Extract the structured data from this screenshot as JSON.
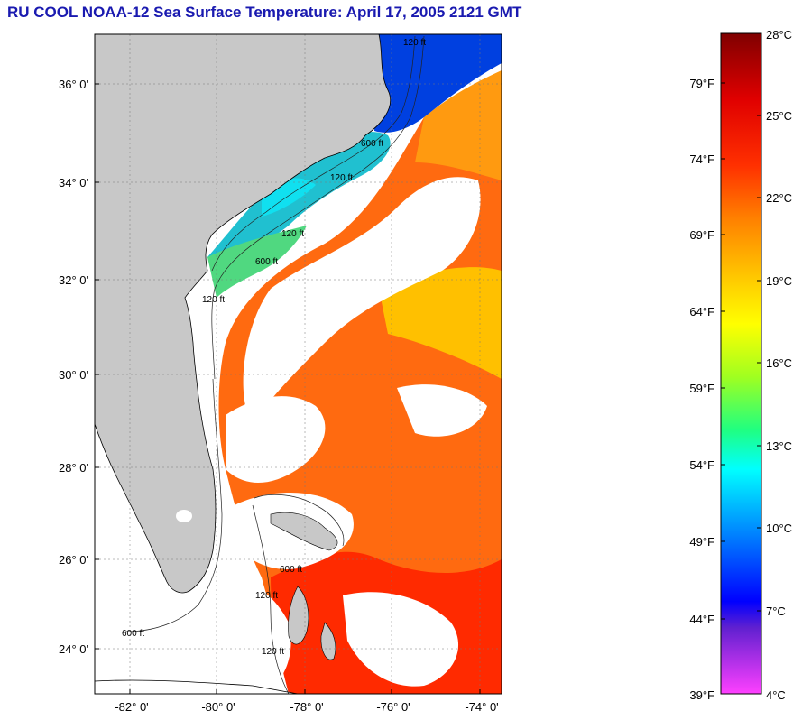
{
  "title": "RU COOL  NOAA-12  Sea Surface Temperature:  April 17, 2005 2121 GMT",
  "map": {
    "lat_labels": [
      "36° 0'",
      "34° 0'",
      "32° 0'",
      "30° 0'",
      "28° 0'",
      "26° 0'",
      "24° 0'"
    ],
    "lon_labels": [
      "-82° 0'",
      "-80° 0'",
      "-78° 0'",
      "-76° 0'",
      "-74° 0'"
    ],
    "contour_labels": [
      "600 ft",
      "120 ft",
      "600 ft",
      "120 ft",
      "120 ft",
      "600 ft",
      "120 ft",
      "600 ft",
      "120 ft"
    ],
    "colors": {
      "land": "#c8c8c8",
      "cloud": "#ffffff",
      "coast": "#000000"
    }
  },
  "colorbar": {
    "fahrenheit": [
      "79°F",
      "74°F",
      "69°F",
      "64°F",
      "59°F",
      "54°F",
      "49°F",
      "44°F",
      "39°F"
    ],
    "celsius": [
      "28°C",
      "25°C",
      "22°C",
      "19°C",
      "16°C",
      "13°C",
      "10°C",
      "7°C",
      "4°C"
    ],
    "gradient_stops": [
      {
        "offset": "0%",
        "color": "#800000"
      },
      {
        "offset": "10%",
        "color": "#e00000"
      },
      {
        "offset": "20%",
        "color": "#ff3000"
      },
      {
        "offset": "28%",
        "color": "#ff8000"
      },
      {
        "offset": "38%",
        "color": "#ffd000"
      },
      {
        "offset": "44%",
        "color": "#ffff00"
      },
      {
        "offset": "52%",
        "color": "#a0ff20"
      },
      {
        "offset": "60%",
        "color": "#20ff80"
      },
      {
        "offset": "66%",
        "color": "#00ffff"
      },
      {
        "offset": "76%",
        "color": "#0080ff"
      },
      {
        "offset": "86%",
        "color": "#0000ff"
      },
      {
        "offset": "90%",
        "color": "#6020d0"
      },
      {
        "offset": "100%",
        "color": "#ff40ff"
      }
    ]
  }
}
